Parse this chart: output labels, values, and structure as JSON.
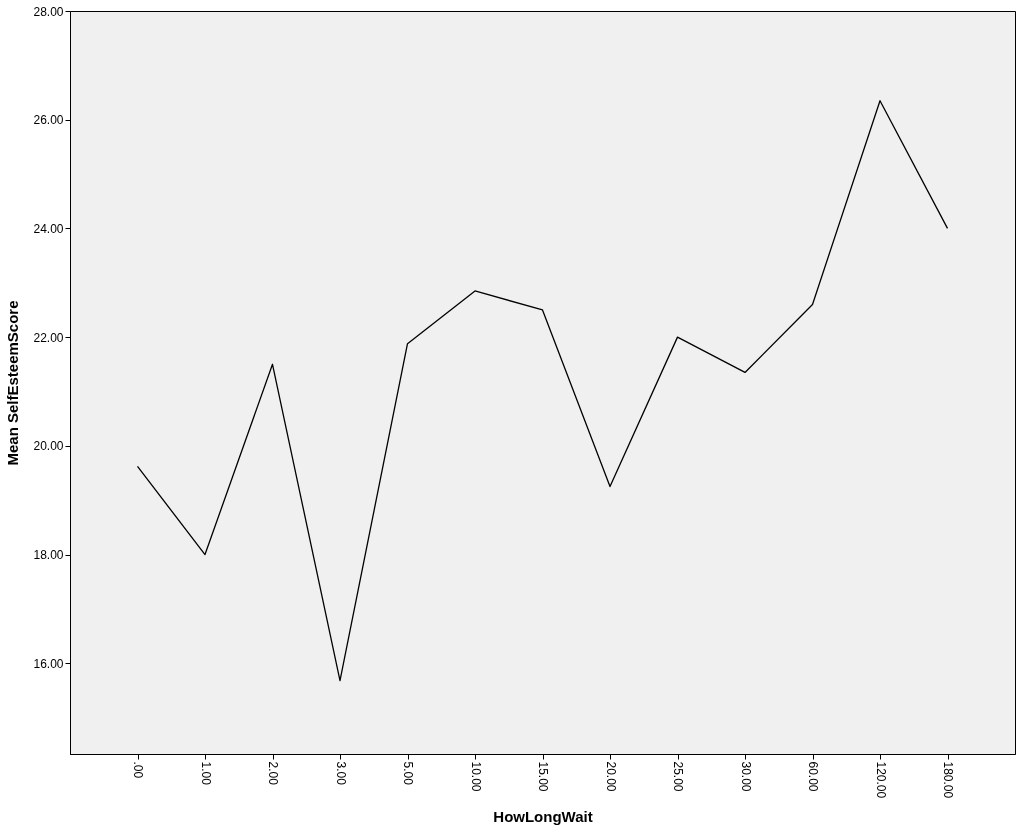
{
  "chart_data": {
    "type": "line",
    "xlabel": "HowLongWait",
    "ylabel": "Mean SelfEsteemScore",
    "categories": [
      ".00",
      "1.00",
      "2.00",
      "3.00",
      "5.00",
      "10.00",
      "15.00",
      "20.00",
      "25.00",
      "30.00",
      "60.00",
      "120.00",
      "180.00"
    ],
    "series": [
      {
        "color": "#000000",
        "values": [
          19.62,
          18.0,
          21.5,
          15.68,
          21.88,
          22.85,
          22.5,
          19.25,
          22.0,
          21.35,
          22.6,
          26.35,
          24.0
        ]
      }
    ],
    "ylim": [
      14.33,
      28
    ],
    "yticks": [
      {
        "value": 16,
        "label": "16.00"
      },
      {
        "value": 18,
        "label": "18.00"
      },
      {
        "value": 20,
        "label": "20.00"
      },
      {
        "value": 22,
        "label": "22.00"
      },
      {
        "value": 24,
        "label": "24.00"
      },
      {
        "value": 26,
        "label": "26.00"
      },
      {
        "value": 28,
        "label": "28.00"
      }
    ],
    "grid": false,
    "marker": "none",
    "line_style": "solid"
  }
}
